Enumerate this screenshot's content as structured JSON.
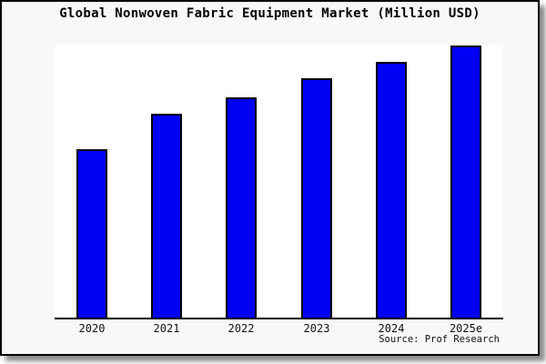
{
  "window": {
    "background_color": "#f8f8f8",
    "border_color": "#000000",
    "plot_background_color": "#ffffff"
  },
  "header": {
    "title": "Global Nonwoven Fabric Equipment Market (Million USD)"
  },
  "footer": {
    "source_note": "Source: Prof Research"
  },
  "chart_data": {
    "type": "bar",
    "title": "Global Nonwoven Fabric Equipment Market (Million USD)",
    "unit": "Million USD",
    "categories": [
      "2020",
      "2021",
      "2022",
      "2023",
      "2024",
      "2025e"
    ],
    "values_percent_of_tallest_bar": [
      62,
      75,
      81,
      88,
      94,
      100
    ],
    "series_note": "y-axis has no ticks, labels or gridlines; values estimated as relative bar heights (tallest bar = 100)",
    "xlabel": "",
    "ylabel": "",
    "legend": "none",
    "gridlines": false,
    "bar_fill_color": "#0000f5",
    "bar_edge_color": "#000000",
    "axis_line_color": "#000000",
    "source": "Prof Research"
  }
}
